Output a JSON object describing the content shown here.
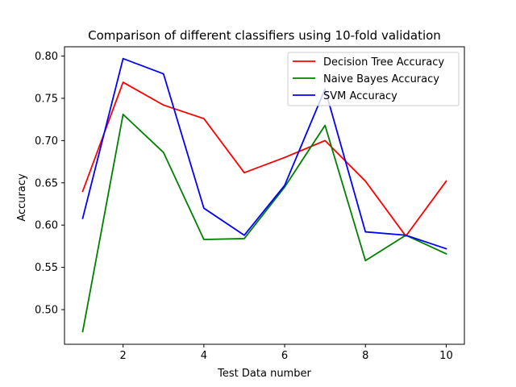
{
  "chart_data": {
    "type": "line",
    "title": "Comparison of different classifiers using 10-fold validation",
    "xlabel": "Test Data number",
    "ylabel": "Accuracy",
    "x": [
      1,
      2,
      3,
      4,
      5,
      6,
      7,
      8,
      9,
      10
    ],
    "xlim": [
      0.55,
      10.45
    ],
    "ylim": [
      0.459,
      0.811
    ],
    "xticks": [
      2,
      4,
      6,
      8,
      10
    ],
    "yticks": [
      0.5,
      0.55,
      0.6,
      0.65,
      0.7,
      0.75,
      0.8
    ],
    "xtick_labels": [
      "2",
      "4",
      "6",
      "8",
      "10"
    ],
    "ytick_labels": [
      "0.50",
      "0.55",
      "0.60",
      "0.65",
      "0.70",
      "0.75",
      "0.80"
    ],
    "grid": false,
    "legend_position": "top-right",
    "series": [
      {
        "name": "Decision Tree Accuracy",
        "color": "#ff0000",
        "values": [
          0.64,
          0.769,
          0.742,
          0.726,
          0.662,
          0.68,
          0.7,
          0.652,
          0.587,
          0.652
        ]
      },
      {
        "name": "Naive Bayes Accuracy",
        "color": "#008000",
        "values": [
          0.474,
          0.731,
          0.686,
          0.583,
          0.584,
          0.645,
          0.718,
          0.558,
          0.588,
          0.566
        ]
      },
      {
        "name": "SVM Accuracy",
        "color": "#0000ff",
        "values": [
          0.608,
          0.797,
          0.779,
          0.62,
          0.588,
          0.647,
          0.761,
          0.592,
          0.588,
          0.572
        ]
      }
    ]
  }
}
